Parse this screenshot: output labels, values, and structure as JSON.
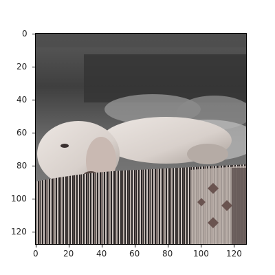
{
  "figure": {
    "x_ticks": [
      "0",
      "20",
      "40",
      "60",
      "80",
      "100",
      "120"
    ],
    "y_ticks": [
      "0",
      "20",
      "40",
      "60",
      "80",
      "100",
      "120"
    ],
    "x_tick_values": [
      0,
      20,
      40,
      60,
      80,
      100,
      120
    ],
    "y_tick_values": [
      0,
      20,
      40,
      60,
      80,
      100,
      120
    ],
    "x_range": [
      -0.5,
      127.5
    ],
    "y_range": [
      -0.5,
      127.5
    ]
  },
  "image": {
    "subject": "puppy-resting-on-patterned-couch",
    "palette": {
      "background_dark": "#3a3a3a",
      "background_mid": "#6e6e6e",
      "fur_light": "#e6e0dc",
      "fur_shadow": "#b8aea8",
      "couch_dark": "#2a2626",
      "couch_light": "#cfc6c2",
      "couch_pattern": "#8a6a66"
    }
  }
}
